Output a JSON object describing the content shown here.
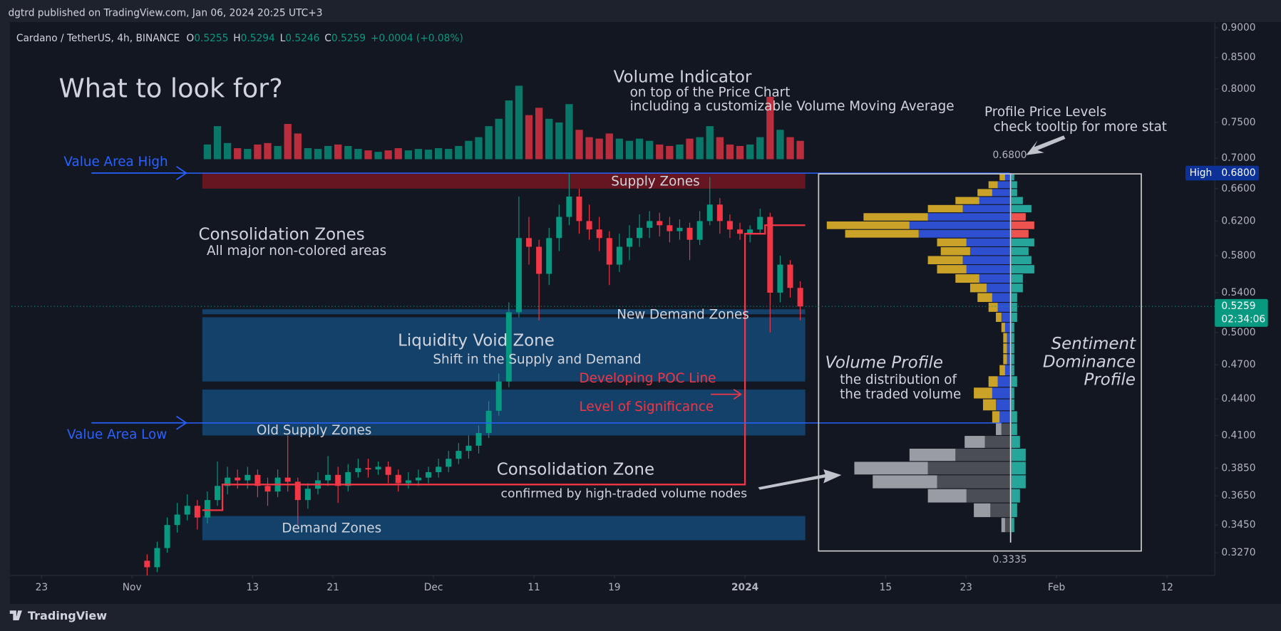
{
  "header": {
    "publisher": "dgtrd published on TradingView.com, Jan 06, 2024 20:25 UTC+3",
    "footer": "TradingView"
  },
  "chart_data": {
    "type": "candlestick",
    "symbol": "Cardano / TetherUS, 4h, BINANCE",
    "ohlc_legend": [
      {
        "label": "O",
        "value": 0.5255
      },
      {
        "label": "H",
        "value": 0.5294
      },
      {
        "label": "L",
        "value": 0.5246
      },
      {
        "label": "C",
        "value": 0.5259
      }
    ],
    "change": "+0.0004 (+0.08%)",
    "x": [
      "2023-11-02",
      "2023-11-03",
      "2023-11-04",
      "2023-11-05",
      "2023-11-06",
      "2023-11-07",
      "2023-11-08",
      "2023-11-09",
      "2023-11-10",
      "2023-11-11",
      "2023-11-12",
      "2023-11-13",
      "2023-11-14",
      "2023-11-15",
      "2023-11-16",
      "2023-11-17",
      "2023-11-18",
      "2023-11-19",
      "2023-11-20",
      "2023-11-21",
      "2023-11-22",
      "2023-11-23",
      "2023-11-24",
      "2023-11-25",
      "2023-11-26",
      "2023-11-27",
      "2023-11-28",
      "2023-11-29",
      "2023-11-30",
      "2023-12-01",
      "2023-12-02",
      "2023-12-03",
      "2023-12-04",
      "2023-12-05",
      "2023-12-06",
      "2023-12-07",
      "2023-12-08",
      "2023-12-09",
      "2023-12-10",
      "2023-12-11",
      "2023-12-12",
      "2023-12-13",
      "2023-12-14",
      "2023-12-15",
      "2023-12-16",
      "2023-12-17",
      "2023-12-18",
      "2023-12-19",
      "2023-12-20",
      "2023-12-21",
      "2023-12-22",
      "2023-12-23",
      "2023-12-24",
      "2023-12-25",
      "2023-12-26",
      "2023-12-27",
      "2023-12-28",
      "2023-12-29",
      "2023-12-30",
      "2023-12-31",
      "2024-01-01",
      "2024-01-02",
      "2024-01-03",
      "2024-01-04",
      "2024-01-05",
      "2024-01-06"
    ],
    "open": [
      0.322,
      0.318,
      0.33,
      0.345,
      0.352,
      0.358,
      0.35,
      0.362,
      0.372,
      0.378,
      0.376,
      0.38,
      0.372,
      0.368,
      0.378,
      0.375,
      0.362,
      0.37,
      0.376,
      0.38,
      0.372,
      0.382,
      0.385,
      0.384,
      0.386,
      0.38,
      0.374,
      0.376,
      0.378,
      0.382,
      0.386,
      0.392,
      0.398,
      0.402,
      0.412,
      0.43,
      0.455,
      0.52,
      0.6,
      0.59,
      0.56,
      0.6,
      0.625,
      0.65,
      0.62,
      0.61,
      0.6,
      0.57,
      0.59,
      0.6,
      0.612,
      0.62,
      0.615,
      0.608,
      0.612,
      0.598,
      0.62,
      0.64,
      0.62,
      0.61,
      0.605,
      0.61,
      0.625,
      0.54,
      0.57,
      0.545
    ],
    "high": [
      0.326,
      0.334,
      0.35,
      0.36,
      0.366,
      0.362,
      0.368,
      0.39,
      0.386,
      0.384,
      0.386,
      0.384,
      0.378,
      0.384,
      0.41,
      0.378,
      0.374,
      0.382,
      0.394,
      0.386,
      0.388,
      0.392,
      0.392,
      0.39,
      0.39,
      0.384,
      0.382,
      0.384,
      0.386,
      0.392,
      0.398,
      0.404,
      0.41,
      0.418,
      0.438,
      0.462,
      0.53,
      0.65,
      0.625,
      0.598,
      0.612,
      0.64,
      0.68,
      0.66,
      0.64,
      0.625,
      0.608,
      0.605,
      0.615,
      0.628,
      0.632,
      0.63,
      0.625,
      0.622,
      0.618,
      0.632,
      0.675,
      0.648,
      0.628,
      0.618,
      0.615,
      0.635,
      0.63,
      0.58,
      0.575,
      0.552
    ],
    "low": [
      0.313,
      0.315,
      0.327,
      0.34,
      0.348,
      0.342,
      0.346,
      0.358,
      0.366,
      0.37,
      0.37,
      0.364,
      0.358,
      0.364,
      0.368,
      0.345,
      0.356,
      0.366,
      0.372,
      0.36,
      0.368,
      0.378,
      0.378,
      0.38,
      0.374,
      0.368,
      0.37,
      0.372,
      0.374,
      0.378,
      0.382,
      0.388,
      0.392,
      0.396,
      0.408,
      0.426,
      0.45,
      0.515,
      0.57,
      0.512,
      0.548,
      0.585,
      0.615,
      0.605,
      0.598,
      0.585,
      0.548,
      0.562,
      0.575,
      0.59,
      0.6,
      0.602,
      0.595,
      0.598,
      0.575,
      0.592,
      0.615,
      0.605,
      0.6,
      0.598,
      0.595,
      0.605,
      0.5,
      0.53,
      0.535,
      0.512
    ],
    "close": [
      0.318,
      0.33,
      0.345,
      0.352,
      0.358,
      0.35,
      0.362,
      0.372,
      0.378,
      0.376,
      0.38,
      0.372,
      0.368,
      0.378,
      0.375,
      0.362,
      0.37,
      0.376,
      0.38,
      0.372,
      0.382,
      0.385,
      0.384,
      0.386,
      0.38,
      0.374,
      0.376,
      0.378,
      0.382,
      0.386,
      0.392,
      0.398,
      0.402,
      0.412,
      0.43,
      0.455,
      0.52,
      0.6,
      0.59,
      0.56,
      0.6,
      0.625,
      0.65,
      0.62,
      0.61,
      0.6,
      0.57,
      0.59,
      0.6,
      0.612,
      0.62,
      0.615,
      0.608,
      0.612,
      0.598,
      0.62,
      0.64,
      0.62,
      0.61,
      0.605,
      0.61,
      0.625,
      0.54,
      0.57,
      0.545,
      0.5259
    ],
    "up_color": "#089981",
    "down_color": "#f23645",
    "volume": [
      null,
      null,
      null,
      null,
      null,
      null,
      20,
      45,
      22,
      15,
      14,
      20,
      22,
      18,
      48,
      35,
      15,
      14,
      18,
      20,
      18,
      14,
      12,
      10,
      12,
      15,
      12,
      14,
      13,
      15,
      14,
      18,
      25,
      30,
      45,
      55,
      80,
      100,
      60,
      70,
      55,
      50,
      75,
      40,
      30,
      28,
      35,
      28,
      25,
      28,
      25,
      20,
      18,
      20,
      28,
      30,
      45,
      30,
      20,
      18,
      20,
      30,
      85,
      40,
      30,
      25
    ],
    "xlim": [
      "2023-10-20",
      "2024-02-17"
    ],
    "xticks": [
      {
        "value": "2023-10-23",
        "label": "23"
      },
      {
        "value": "2023-11-01",
        "label": "Nov"
      },
      {
        "value": "2023-11-13",
        "label": "13"
      },
      {
        "value": "2023-11-21",
        "label": "21"
      },
      {
        "value": "2023-12-01",
        "label": "Dec"
      },
      {
        "value": "2023-12-11",
        "label": "11"
      },
      {
        "value": "2023-12-19",
        "label": "19"
      },
      {
        "value": "2024-01-01",
        "label": "2024"
      },
      {
        "value": "2024-01-15",
        "label": "15"
      },
      {
        "value": "2024-01-23",
        "label": "23"
      },
      {
        "value": "2024-02-01",
        "label": "Feb"
      },
      {
        "value": "2024-02-12",
        "label": "12"
      }
    ],
    "ylim": [
      0.313,
      0.91
    ],
    "log_scale": true,
    "grid": false,
    "yticks": [
      {
        "value": 0.9,
        "label": "0.9000"
      },
      {
        "value": 0.85,
        "label": "0.8500"
      },
      {
        "value": 0.8,
        "label": "0.8000"
      },
      {
        "value": 0.75,
        "label": "0.7500"
      },
      {
        "value": 0.7,
        "label": "0.7000"
      },
      {
        "value": 0.66,
        "label": "0.6600"
      },
      {
        "value": 0.62,
        "label": "0.6200"
      },
      {
        "value": 0.58,
        "label": "0.5800"
      },
      {
        "value": 0.54,
        "label": "0.5400"
      },
      {
        "value": 0.5,
        "label": "0.5000"
      },
      {
        "value": 0.47,
        "label": "0.4700"
      },
      {
        "value": 0.44,
        "label": "0.4400"
      },
      {
        "value": 0.41,
        "label": "0.4100"
      },
      {
        "value": 0.385,
        "label": "0.3850"
      },
      {
        "value": 0.365,
        "label": "0.3650"
      },
      {
        "value": 0.345,
        "label": "0.3450"
      },
      {
        "value": 0.327,
        "label": "0.3270"
      }
    ],
    "last_price": {
      "value": 0.5259,
      "countdown": "02:34:06"
    },
    "high_tag": {
      "name": "High",
      "value": {
        "value": 0.68,
        "label": "0.6800"
      }
    },
    "value_area": {
      "high": 0.68,
      "low": 0.42,
      "color": "#2962ff"
    },
    "poc": {
      "x": [
        "2023-11-08",
        "2023-11-10",
        "2023-11-10",
        "2024-01-01",
        "2024-01-01",
        "2024-01-03",
        "2024-01-03",
        "2024-01-07"
      ],
      "values": [
        0.355,
        0.355,
        0.373,
        0.373,
        0.605,
        0.605,
        0.615,
        0.615
      ],
      "color": "#f23645"
    },
    "zone_start": "2023-11-08",
    "zone_end": "2024-01-07",
    "zones": [
      {
        "low": 0.66,
        "high": 0.68,
        "color": "rgba(122,22,34,0.8)"
      },
      {
        "low": 0.518,
        "high": 0.523,
        "color": "rgba(20,80,130,0.75)"
      },
      {
        "low": 0.455,
        "high": 0.515,
        "color": "rgba(20,80,130,0.75)"
      },
      {
        "low": 0.41,
        "high": 0.448,
        "color": "rgba(20,80,130,0.75)"
      },
      {
        "low": 0.335,
        "high": 0.351,
        "color": "rgba(20,80,130,0.75)"
      }
    ],
    "profile": {
      "levels": [
        0.34,
        0.35,
        0.36,
        0.37,
        0.38,
        0.39,
        0.4,
        0.41,
        0.42,
        0.43,
        0.44,
        0.45,
        0.46,
        0.47,
        0.48,
        0.49,
        0.5,
        0.51,
        0.52,
        0.53,
        0.54,
        0.55,
        0.56,
        0.57,
        0.58,
        0.59,
        0.6,
        0.61,
        0.62,
        0.63,
        0.64,
        0.65,
        0.66,
        0.67
      ],
      "buy": [
        3,
        11,
        24,
        40,
        45,
        30,
        14,
        5,
        6,
        8,
        10,
        7,
        3,
        2,
        2,
        2,
        3,
        5,
        7,
        10,
        13,
        17,
        24,
        26,
        22,
        24,
        50,
        55,
        45,
        26,
        17,
        10,
        7,
        3
      ],
      "sell": [
        2,
        9,
        21,
        35,
        40,
        25,
        11,
        3,
        4,
        7,
        10,
        5,
        3,
        2,
        2,
        2,
        2,
        3,
        5,
        8,
        9,
        13,
        16,
        19,
        16,
        16,
        40,
        45,
        35,
        19,
        13,
        8,
        5,
        3
      ],
      "sentiment": [
        1,
        2,
        3,
        5,
        5,
        5,
        3,
        2,
        2,
        1,
        1,
        2,
        1,
        1,
        1,
        1,
        1,
        2,
        2,
        2,
        4,
        4,
        8,
        7,
        6,
        8,
        -6,
        -8,
        -5,
        7,
        4,
        2,
        2,
        1
      ],
      "value_area_colors": [
        "#2e4fd0",
        "#c9a227"
      ],
      "outside_colors": [
        "#4b4d55",
        "#9a9ca3"
      ],
      "sentiment_colors": [
        "#26a69a",
        "#ef5350"
      ],
      "top_label": {
        "value": 0.68,
        "label": "0.6800"
      },
      "bottom_label": {
        "value": 0.3335,
        "label": "0.3335"
      }
    },
    "annotations": [
      "What to look for?",
      "Volume Indicator",
      "on top of the Price Chart",
      "including a customizable Volume Moving Average",
      "Profile Price Levels",
      "check tooltip for more stat",
      "Value Area High",
      "Supply Zones",
      "Consolidation Zones",
      "All major non-colored areas",
      "New Demand Zones",
      "Liquidity Void Zone",
      "Shift in the Supply and Demand",
      "Developing POC Line",
      "Level of Significance",
      "Value Area Low",
      "Old Supply Zones",
      "Consolidation Zone",
      "confirmed by high-traded volume nodes",
      "Demand Zones",
      "Volume Profile",
      "the distribution of",
      "the traded volume",
      "Sentiment",
      "Dominance",
      "Profile"
    ]
  }
}
